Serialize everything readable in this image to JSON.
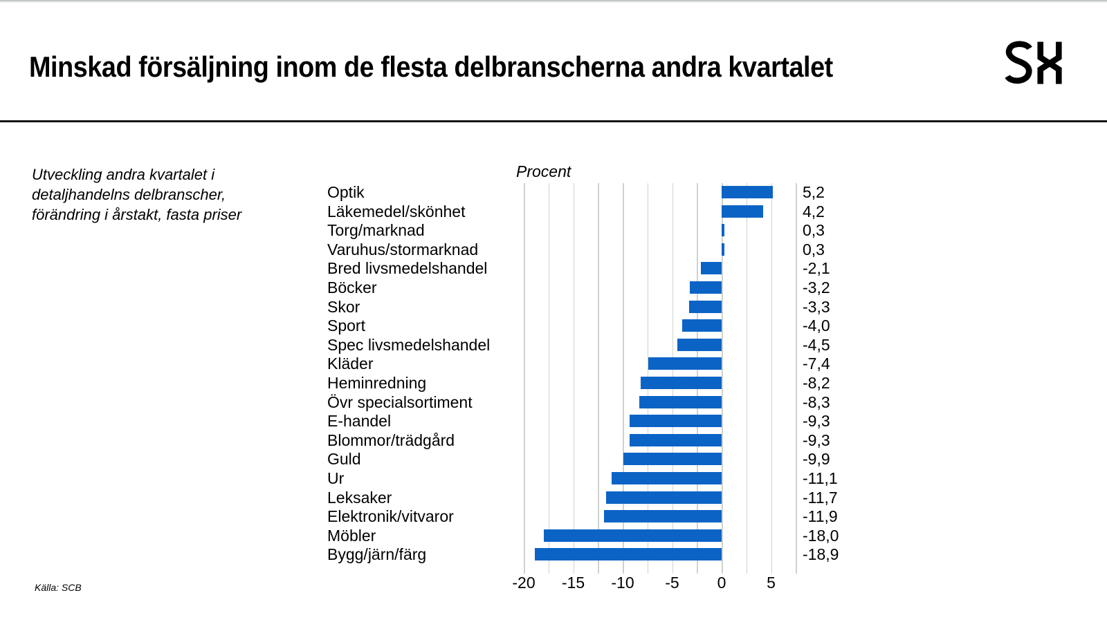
{
  "header": {
    "title": "Minskad försäljning inom de flesta delbranscherna andra kvartalet",
    "logo_text": "SH"
  },
  "intro": {
    "text": "Utveckling andra kvartalet i detaljhandelns delbranscher, förändring i årstakt, fasta priser"
  },
  "footer": {
    "source": "Källa: SCB"
  },
  "colors": {
    "bar": "#0c63c6",
    "gridline": "#cdd3cd",
    "divider": "#141414",
    "text": "#000000"
  },
  "chart_data": {
    "type": "bar",
    "orientation": "horizontal",
    "unit_label": "Procent",
    "categories": [
      "Optik",
      "Läkemedel/skönhet",
      "Torg/marknad",
      "Varuhus/stormarknad",
      "Bred livsmedelshandel",
      "Böcker",
      "Skor",
      "Sport",
      "Spec livsmedelshandel",
      "Kläder",
      "Heminredning",
      "Övr specialsortiment",
      "E-handel",
      "Blommor/trädgård",
      "Guld",
      "Ur",
      "Leksaker",
      "Elektronik/vitvaror",
      "Möbler",
      "Bygg/järn/färg"
    ],
    "values": [
      5.2,
      4.2,
      0.3,
      0.3,
      -2.1,
      -3.2,
      -3.3,
      -4.0,
      -4.5,
      -7.4,
      -8.2,
      -8.3,
      -9.3,
      -9.3,
      -9.9,
      -11.1,
      -11.7,
      -11.9,
      -18.0,
      -18.9
    ],
    "value_labels": [
      "5,2",
      "4,2",
      "0,3",
      "0,3",
      "-2,1",
      "-3,2",
      "-3,3",
      "-4,0",
      "-4,5",
      "-7,4",
      "-8,2",
      "-8,3",
      "-9,3",
      "-9,3",
      "-9,9",
      "-11,1",
      "-11,7",
      "-11,9",
      "-18,0",
      "-18,9"
    ],
    "tick_labels": [
      "-20",
      "-15",
      "-10",
      "-5",
      "0",
      "5"
    ],
    "tick_values": [
      -20,
      -15,
      -10,
      -5,
      0,
      5
    ],
    "xlim": [
      -20,
      7.5
    ],
    "gridline_step": 2.5,
    "grid": true,
    "legend": false
  }
}
